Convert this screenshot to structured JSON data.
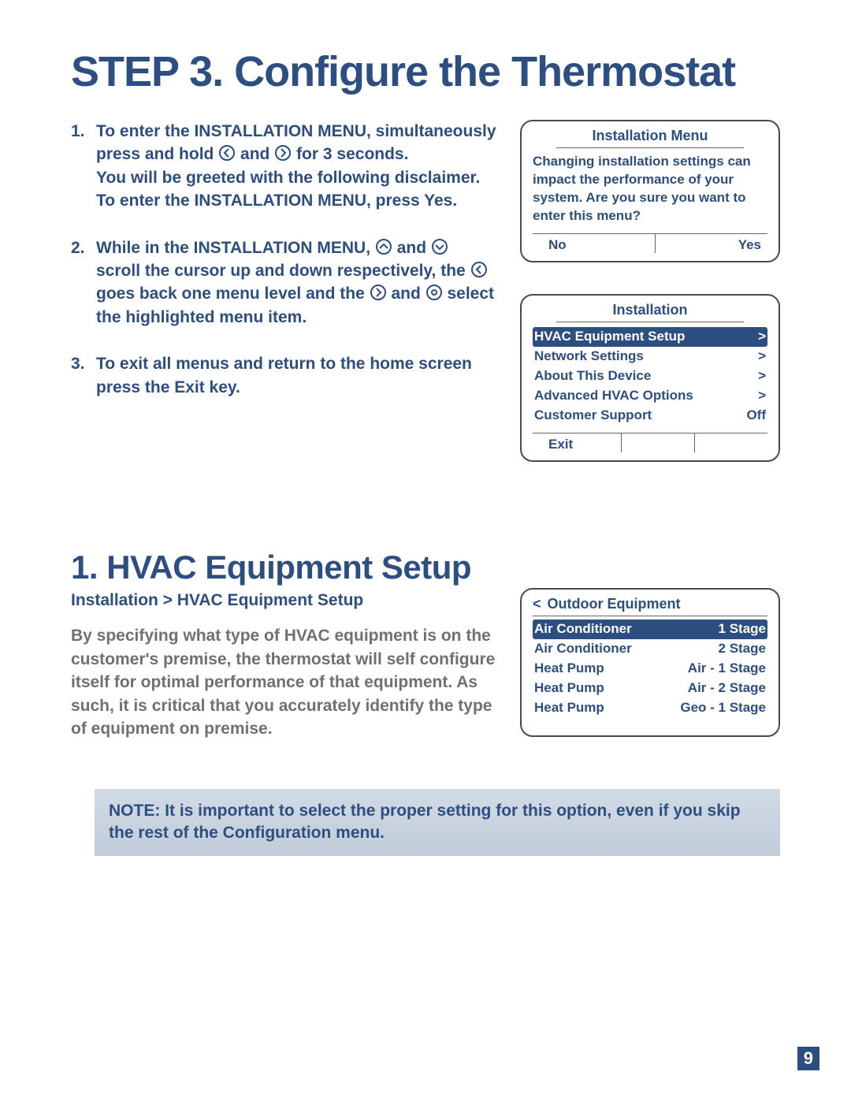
{
  "title": "STEP 3. Configure the Thermostat",
  "steps": {
    "s1_num": "1.",
    "s1a": "To enter the INSTALLATION MENU, simultaneously press and hold ",
    "s1b": " and ",
    "s1c": " for 3 seconds.",
    "s1d": "You will be greeted with the following disclaimer. To enter the INSTALLATION MENU, press Yes.",
    "s2_num": "2.",
    "s2a": "While in the INSTALLATION MENU, ",
    "s2b": " and ",
    "s2c": " scroll the cursor up and down respectively, the ",
    "s2d": " goes back one menu level and the ",
    "s2e": " and ",
    "s2f": " select the highlighted menu item.",
    "s3_num": "3.",
    "s3": "To exit all menus and return to the home screen press the Exit key."
  },
  "screen1": {
    "title": "Installation Menu",
    "body": "Changing installation settings can impact the performance of your system. Are you sure you want to enter this menu?",
    "no": "No",
    "yes": "Yes"
  },
  "screen2": {
    "title": "Installation",
    "rows": [
      {
        "label": "HVAC Equipment Setup",
        "val": ">",
        "sel": true
      },
      {
        "label": "Network Settings",
        "val": ">",
        "sel": false
      },
      {
        "label": "About This Device",
        "val": ">",
        "sel": false
      },
      {
        "label": "Advanced HVAC Options",
        "val": ">",
        "sel": false
      },
      {
        "label": "Customer Support",
        "val": "Off",
        "sel": false
      }
    ],
    "exit": "Exit"
  },
  "section": {
    "heading": "1. HVAC Equipment Setup",
    "breadcrumb": "Installation > HVAC Equipment Setup",
    "body": "By specifying what type of HVAC equipment is on the customer's premise, the thermostat will self configure itself for optimal performance of that equipment. As such, it is critical that you accurately identify the type of equipment on premise."
  },
  "screen3": {
    "back": "<",
    "title": "Outdoor Equipment",
    "rows": [
      {
        "label": "Air Conditioner",
        "val": "1 Stage",
        "sel": true
      },
      {
        "label": "Air Conditioner",
        "val": "2 Stage",
        "sel": false
      },
      {
        "label": "Heat Pump",
        "val": "Air - 1 Stage",
        "sel": false
      },
      {
        "label": "Heat Pump",
        "val": "Air - 2 Stage",
        "sel": false
      },
      {
        "label": "Heat Pump",
        "val": "Geo - 1 Stage",
        "sel": false
      }
    ]
  },
  "note": "NOTE: It is important to select the proper setting for this option, even if you skip the rest of the Configuration menu.",
  "page": "9",
  "colors": {
    "primary": "#2d4e80",
    "grey": "#707070",
    "noteBg": "#c9d4e0"
  }
}
